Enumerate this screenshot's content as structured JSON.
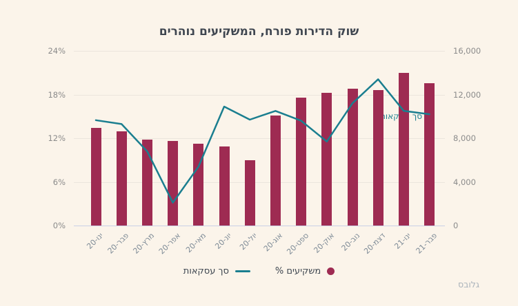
{
  "chart_data": {
    "type": "bar",
    "subtype": "bar-line-combo",
    "title": "שוק הדירות פורח, המשקיעים נוהרים",
    "categories": [
      "ינו-20",
      "פבר-20",
      "מרץ-20",
      "אפר-20",
      "מאי-20",
      "יונ-20",
      "יול-20",
      "אוג-20",
      "ספט-20",
      "אוק-20",
      "נוב-20",
      "דצמ-20",
      "ינו-21",
      "פבר-21"
    ],
    "series": [
      {
        "name": "משקיעים %",
        "type": "bar",
        "axis": "left",
        "unit": "%",
        "color": "#9e2b52",
        "values": [
          13.4,
          12.9,
          11.8,
          11.6,
          11.2,
          10.9,
          9.0,
          15.1,
          17.6,
          18.2,
          18.8,
          18.6,
          21.0,
          19.6
        ]
      },
      {
        "name": "סך עסקאות",
        "type": "line",
        "axis": "right",
        "color": "#1a7e8f",
        "values": [
          9650,
          9300,
          6800,
          2100,
          5400,
          10900,
          9700,
          10500,
          9600,
          7700,
          11200,
          13400,
          10500,
          10200
        ]
      }
    ],
    "left_axis": {
      "min": 0,
      "max": 24,
      "ticks": [
        "0%",
        "6%",
        "12%",
        "18%",
        "24%"
      ]
    },
    "right_axis": {
      "min": 0,
      "max": 16000,
      "ticks": [
        "0",
        "4,000",
        "8,000",
        "12,000",
        "16,000"
      ]
    },
    "annotation": {
      "text": "סך עסקאות"
    },
    "grid": true,
    "legend_position": "bottom",
    "rtl": true
  },
  "legend": {
    "items": [
      {
        "label": "משקיעים %",
        "marker": "circle",
        "color": "#9e2b52"
      },
      {
        "label": "סך עסקאות",
        "marker": "line",
        "color": "#1a7e8f"
      }
    ]
  },
  "footer": {
    "brand": "גלובס"
  },
  "colors": {
    "background": "#fbf4ea",
    "bar": "#9e2b52",
    "line": "#1a7e8f",
    "grid": "#ebe5dd",
    "axis_line": "#c9cfe6",
    "ytick_text": "#8b8b8b",
    "xtick_text": "#7d8a96",
    "title_text": "#3f4650",
    "brand_text": "#aab3bb"
  }
}
